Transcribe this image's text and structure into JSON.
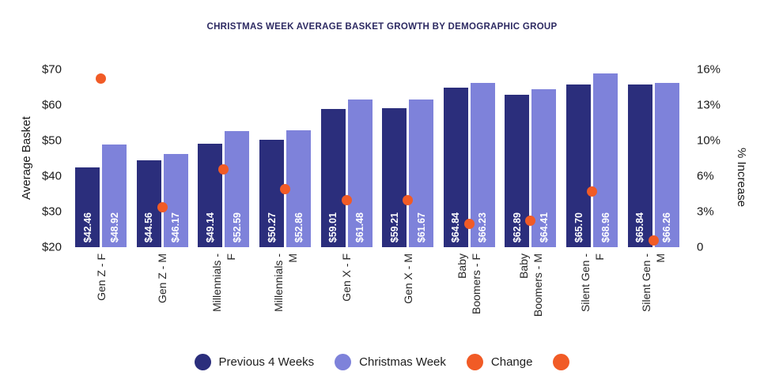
{
  "colors": {
    "previous_4_weeks": "#2b2e7c",
    "christmas_week": "#7e82da",
    "change": "#f15b26",
    "title_text": "#2d2a62",
    "axis_text": "#1a1a1a",
    "bar_label_text": "#ffffff",
    "background": "#ffffff"
  },
  "chart_data": {
    "type": "bar",
    "title": "CHRISTMAS WEEK AVERAGE BASKET GROWTH BY DEMOGRAPHIC GROUP",
    "ylabel_left": "Average Basket",
    "ylabel_right": "% Increase",
    "ylim_left": [
      20,
      70
    ],
    "ylim_right": [
      0,
      16
    ],
    "grid": false,
    "legend_position": "bottom",
    "yticks_left": [
      {
        "label": "$70",
        "value": 70
      },
      {
        "label": "$60",
        "value": 60
      },
      {
        "label": "$50",
        "value": 50
      },
      {
        "label": "$40",
        "value": 40
      },
      {
        "label": "$30",
        "value": 30
      },
      {
        "label": "$20",
        "value": 20
      }
    ],
    "yticks_right": [
      {
        "label": "16%",
        "value": 16
      },
      {
        "label": "13%",
        "value": 12.8
      },
      {
        "label": "10%",
        "value": 9.6
      },
      {
        "label": "6%",
        "value": 6.4
      },
      {
        "label": "3%",
        "value": 3.2
      },
      {
        "label": "0",
        "value": 0
      }
    ],
    "categories": [
      "Gen Z - F",
      "Gen Z - M",
      "Millennials - F",
      "Millennials - M",
      "Gen X - F",
      "Gen X - M",
      "Baby Boomers - F",
      "Baby Boomers - M",
      "Silent Gen - F",
      "Silent Gen - M"
    ],
    "category_display": [
      "Gen Z - F",
      "Gen Z - M",
      "Millennials -\nF",
      "Millennials -\nM",
      "Gen X - F",
      "Gen X - M",
      "Baby\nBoomers - F",
      "Baby\nBoomers - M",
      "Silent Gen -\nF",
      "Silent Gen -\nM"
    ],
    "series": [
      {
        "name": "Previous 4 Weeks",
        "color": "#2b2e7c",
        "values": [
          42.46,
          44.56,
          49.14,
          50.27,
          59.01,
          59.21,
          64.84,
          62.89,
          65.7,
          65.84
        ],
        "labels": [
          "$42.46",
          "$44.56",
          "$49.14",
          "$50.27",
          "$59.01",
          "$59.21",
          "$64.84",
          "$62.89",
          "$65.70",
          "$65.84"
        ]
      },
      {
        "name": "Christmas Week",
        "color": "#7e82da",
        "values": [
          48.92,
          46.17,
          52.59,
          52.86,
          61.48,
          61.67,
          66.23,
          64.41,
          68.96,
          66.26
        ],
        "labels": [
          "$48.92",
          "$46.17",
          "$52.59",
          "$52.86",
          "$61.48",
          "$61.67",
          "$66.23",
          "$64.41",
          "$68.96",
          "$66.26"
        ]
      }
    ],
    "change_series": {
      "name": "Change",
      "color": "#f15b26",
      "axis": "right",
      "values_percent": [
        15.2,
        3.6,
        7.0,
        5.2,
        4.2,
        4.2,
        2.1,
        2.4,
        5.0,
        0.6
      ]
    },
    "legend": [
      {
        "label": "Previous 4 Weeks",
        "color": "#2b2e7c"
      },
      {
        "label": "Christmas Week",
        "color": "#7e82da"
      },
      {
        "label": "Change",
        "color": "#f15b26"
      },
      {
        "label": "",
        "color": "#f15b26"
      }
    ]
  }
}
